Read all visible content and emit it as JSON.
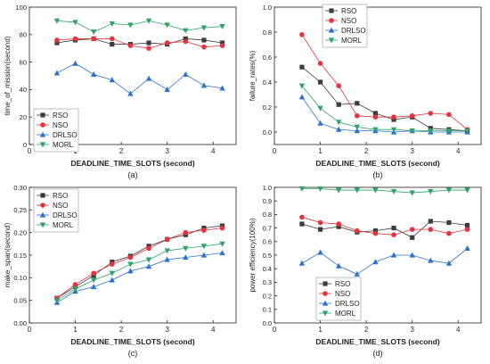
{
  "chart_data": [
    {
      "type": "line",
      "panel_label": "(a)",
      "xlabel": "DEADLINE_TIME_SLOTS (second)",
      "ylabel": "time_of_mission(second)",
      "xlim": [
        0,
        4.5
      ],
      "ylim": [
        0,
        100
      ],
      "xticks": [
        0,
        1,
        2,
        3,
        4
      ],
      "yticks": [
        0,
        20,
        40,
        60,
        80,
        100
      ],
      "grid": false,
      "legend_position": "lower-left",
      "x": [
        0.6,
        1.0,
        1.4,
        1.8,
        2.2,
        2.6,
        3.0,
        3.4,
        3.8,
        4.2
      ],
      "series": [
        {
          "name": "RSO",
          "color": "#3c3c3c",
          "marker": "square",
          "values": [
            74,
            76,
            77,
            73,
            73,
            74,
            73,
            77,
            76,
            74
          ]
        },
        {
          "name": "NSO",
          "color": "#e8323c",
          "marker": "circle",
          "values": [
            76,
            77,
            77,
            77,
            72,
            70,
            74,
            75,
            71,
            72
          ]
        },
        {
          "name": "DRLSO",
          "color": "#2a72d0",
          "marker": "triangle-up",
          "values": [
            52,
            59,
            51,
            47,
            37,
            48,
            40,
            51,
            43,
            41
          ]
        },
        {
          "name": "MORL",
          "color": "#2fa36b",
          "marker": "triangle-down",
          "values": [
            90,
            89,
            82,
            88,
            87,
            90,
            87,
            83,
            85,
            86
          ]
        }
      ]
    },
    {
      "type": "line",
      "panel_label": "(b)",
      "xlabel": "DEADLINE_TIME_SLOTS (second)",
      "ylabel": "failure_rates(%)",
      "xlim": [
        0,
        4.5
      ],
      "ylim": [
        -0.1,
        1.0
      ],
      "xticks": [
        0,
        1,
        2,
        3,
        4
      ],
      "yticks": [
        0.0,
        0.2,
        0.4,
        0.6,
        0.8,
        1.0
      ],
      "tick_labels": {
        "y": [
          "0.0",
          "0.2",
          "0.4",
          "0.6",
          "0.8",
          "1.0"
        ]
      },
      "grid": false,
      "legend_position": "top-center",
      "x": [
        0.6,
        1.0,
        1.4,
        1.8,
        2.2,
        2.6,
        3.0,
        3.4,
        3.8,
        4.2
      ],
      "series": [
        {
          "name": "RSO",
          "color": "#3c3c3c",
          "marker": "square",
          "values": [
            0.52,
            0.4,
            0.22,
            0.23,
            0.15,
            0.1,
            0.12,
            0.03,
            0.02,
            0.01
          ]
        },
        {
          "name": "NSO",
          "color": "#e8323c",
          "marker": "circle",
          "values": [
            0.78,
            0.55,
            0.37,
            0.13,
            0.12,
            0.12,
            0.13,
            0.15,
            0.14,
            0.02
          ]
        },
        {
          "name": "DRLSO",
          "color": "#2a72d0",
          "marker": "triangle-up",
          "values": [
            0.28,
            0.07,
            0.02,
            0.01,
            0.01,
            0.0,
            0.01,
            0.0,
            0.0,
            0.0
          ]
        },
        {
          "name": "MORL",
          "color": "#2fa36b",
          "marker": "triangle-down",
          "values": [
            0.37,
            0.19,
            0.08,
            0.04,
            0.02,
            0.02,
            0.01,
            0.01,
            0.01,
            0.01
          ]
        }
      ]
    },
    {
      "type": "line",
      "panel_label": "(c)",
      "xlabel": "DEADLINE_TIME_SLOTS (second)",
      "ylabel": "make_span(second)",
      "xlim": [
        0,
        4.5
      ],
      "ylim": [
        0,
        0.3
      ],
      "xticks": [
        0,
        1,
        2,
        3,
        4
      ],
      "yticks": [
        0.0,
        0.05,
        0.1,
        0.15,
        0.2,
        0.25,
        0.3
      ],
      "tick_labels": {
        "y": [
          "0.00",
          "0.05",
          "0.10",
          "0.15",
          "0.20",
          "0.25",
          "0.30"
        ]
      },
      "grid": false,
      "legend_position": "top-left",
      "x": [
        0.6,
        1.0,
        1.4,
        1.8,
        2.2,
        2.6,
        3.0,
        3.4,
        3.8,
        4.2
      ],
      "series": [
        {
          "name": "RSO",
          "color": "#3c3c3c",
          "marker": "square",
          "values": [
            0.055,
            0.08,
            0.105,
            0.135,
            0.148,
            0.17,
            0.185,
            0.195,
            0.21,
            0.215
          ]
        },
        {
          "name": "NSO",
          "color": "#e8323c",
          "marker": "circle",
          "values": [
            0.055,
            0.085,
            0.11,
            0.13,
            0.145,
            0.165,
            0.185,
            0.2,
            0.205,
            0.21
          ]
        },
        {
          "name": "DRLSO",
          "color": "#2a72d0",
          "marker": "triangle-up",
          "values": [
            0.045,
            0.07,
            0.08,
            0.095,
            0.115,
            0.125,
            0.14,
            0.145,
            0.15,
            0.155
          ]
        },
        {
          "name": "MORL",
          "color": "#2fa36b",
          "marker": "triangle-down",
          "values": [
            0.05,
            0.075,
            0.095,
            0.11,
            0.13,
            0.14,
            0.16,
            0.165,
            0.17,
            0.175
          ]
        }
      ]
    },
    {
      "type": "line",
      "panel_label": "(d)",
      "xlabel": "DEADLINE_TIME_SLOTS (second)",
      "ylabel": "power efficiency(100%)",
      "xlim": [
        0,
        4.5
      ],
      "ylim": [
        0,
        1.0
      ],
      "xticks": [
        0,
        1,
        2,
        3,
        4
      ],
      "yticks": [
        0.0,
        0.1,
        0.2,
        0.3,
        0.4,
        0.5,
        0.6,
        0.7,
        0.8,
        0.9,
        1.0
      ],
      "tick_labels": {
        "y": [
          "0.0",
          "0.1",
          "0.2",
          "0.3",
          "0.4",
          "0.5",
          "0.6",
          "0.7",
          "0.8",
          "0.9",
          "1.0"
        ]
      },
      "grid": false,
      "legend_position": "lower-right",
      "x": [
        0.6,
        1.0,
        1.4,
        1.8,
        2.2,
        2.6,
        3.0,
        3.4,
        3.8,
        4.2
      ],
      "series": [
        {
          "name": "RSO",
          "color": "#3c3c3c",
          "marker": "square",
          "values": [
            0.73,
            0.69,
            0.71,
            0.67,
            0.68,
            0.7,
            0.63,
            0.75,
            0.74,
            0.72
          ]
        },
        {
          "name": "NSO",
          "color": "#e8323c",
          "marker": "circle",
          "values": [
            0.78,
            0.74,
            0.73,
            0.68,
            0.66,
            0.65,
            0.69,
            0.69,
            0.66,
            0.69
          ]
        },
        {
          "name": "DRLSO",
          "color": "#2a72d0",
          "marker": "triangle-up",
          "values": [
            0.44,
            0.52,
            0.42,
            0.36,
            0.45,
            0.5,
            0.5,
            0.46,
            0.44,
            0.55
          ]
        },
        {
          "name": "MORL",
          "color": "#2fa36b",
          "marker": "triangle-down",
          "values": [
            0.99,
            0.99,
            0.98,
            0.98,
            0.98,
            0.97,
            0.96,
            0.97,
            0.98,
            0.98
          ]
        }
      ]
    }
  ]
}
